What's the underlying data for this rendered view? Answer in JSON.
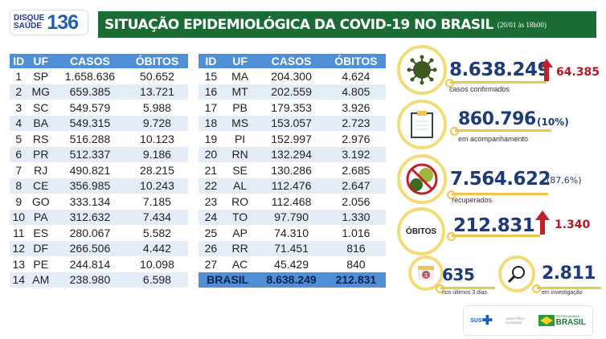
{
  "header": {
    "logo_line1": "DISQUE",
    "logo_line2": "SAÚDE",
    "logo_number": "136",
    "title": "SITUAÇÃO EPIDEMIOLÓGICA DA COVID-19 NO BRASIL",
    "date": "(20/01 às 18h00)"
  },
  "table": {
    "columns": [
      "ID",
      "UF",
      "CASOS",
      "ÓBITOS"
    ],
    "left": [
      [
        "1",
        "SP",
        "1.658.636",
        "50.652"
      ],
      [
        "2",
        "MG",
        "659.385",
        "13.721"
      ],
      [
        "3",
        "SC",
        "549.579",
        "5.988"
      ],
      [
        "4",
        "BA",
        "549.315",
        "9.728"
      ],
      [
        "5",
        "RS",
        "516.288",
        "10.123"
      ],
      [
        "6",
        "PR",
        "512.337",
        "9.186"
      ],
      [
        "7",
        "RJ",
        "490.821",
        "28.215"
      ],
      [
        "8",
        "CE",
        "356.985",
        "10.243"
      ],
      [
        "9",
        "GO",
        "333.134",
        "7.185"
      ],
      [
        "10",
        "PA",
        "312.632",
        "7.434"
      ],
      [
        "11",
        "ES",
        "280.067",
        "5.582"
      ],
      [
        "12",
        "DF",
        "266.506",
        "4.442"
      ],
      [
        "13",
        "PE",
        "244.814",
        "10.098"
      ],
      [
        "14",
        "AM",
        "238.980",
        "6.598"
      ]
    ],
    "right": [
      [
        "15",
        "MA",
        "204.300",
        "4.624"
      ],
      [
        "16",
        "MT",
        "202.559",
        "4.805"
      ],
      [
        "17",
        "PB",
        "179.353",
        "3.926"
      ],
      [
        "18",
        "MS",
        "153.057",
        "2.723"
      ],
      [
        "19",
        "PI",
        "152.997",
        "2.976"
      ],
      [
        "20",
        "RN",
        "132.294",
        "3.192"
      ],
      [
        "21",
        "SE",
        "130.286",
        "2.685"
      ],
      [
        "22",
        "AL",
        "112.476",
        "2.647"
      ],
      [
        "23",
        "RO",
        "112.468",
        "2.056"
      ],
      [
        "24",
        "TO",
        "97.790",
        "1.330"
      ],
      [
        "25",
        "AP",
        "74.310",
        "1.016"
      ],
      [
        "26",
        "RR",
        "71.451",
        "816"
      ],
      [
        "27",
        "AC",
        "45.429",
        "840"
      ]
    ],
    "total": {
      "label": "BRASIL",
      "casos": "8.638.249",
      "obitos": "212.831"
    }
  },
  "stats": {
    "confirmed": {
      "value": "8.638.249",
      "increase": "64.385",
      "label": "casos confirmados",
      "icon": "virus-icon"
    },
    "monitoring": {
      "value": "860.796",
      "pct": "(10%)",
      "label": "em acompanhamento",
      "icon": "clipboard-icon"
    },
    "recovered": {
      "value": "7.564.622",
      "pct": "(87,6%)",
      "label": "recuperados",
      "icon": "no-virus-icon"
    },
    "deaths": {
      "badge": "ÓBITOS",
      "value": "212.831",
      "increase": "1.340"
    },
    "recent": {
      "value": "635",
      "label": "nos últimos 3 dias",
      "icon": "calendar-icon",
      "calendar_number": "3"
    },
    "investigation": {
      "value": "2.811",
      "label": "em investigação",
      "icon": "magnifier-icon"
    }
  },
  "footer": {
    "sus": "SUS",
    "ministry": "MINISTÉRIO DA SAÚDE",
    "patria": "PÁTRIA AMADA",
    "brasil": "BRASIL"
  },
  "colors": {
    "green": "#1b6b34",
    "blue_header": "#4f8fd8",
    "navy": "#1e3a78",
    "red": "#b01a25",
    "gold": "#f0c64a"
  }
}
